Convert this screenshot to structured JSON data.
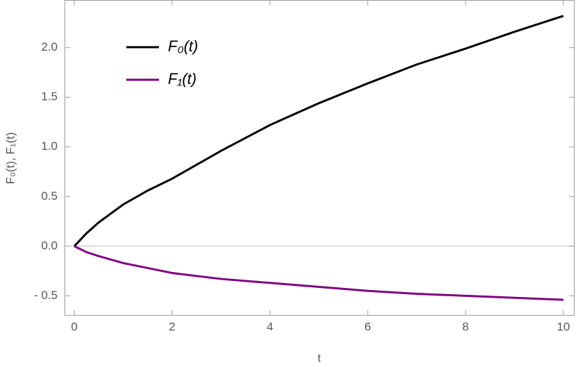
{
  "chart_data": {
    "type": "line",
    "x_label": "t",
    "y_label": "F₀(t), F₁(t)",
    "x": [
      0,
      0.25,
      0.5,
      1,
      1.5,
      2,
      3,
      4,
      5,
      6,
      7,
      8,
      9,
      10
    ],
    "series": [
      {
        "name": "F₀(t)",
        "color": "#000000",
        "values": [
          0,
          0.13,
          0.24,
          0.42,
          0.56,
          0.68,
          0.96,
          1.22,
          1.44,
          1.64,
          1.83,
          1.99,
          2.16,
          2.32
        ]
      },
      {
        "name": "F₁(t)",
        "color": "#800080",
        "values": [
          0,
          -0.06,
          -0.1,
          -0.17,
          -0.22,
          -0.27,
          -0.33,
          -0.37,
          -0.41,
          -0.45,
          -0.48,
          -0.5,
          -0.52,
          -0.54
        ]
      }
    ],
    "xlim": [
      -0.2,
      10.23
    ],
    "ylim": [
      -0.7,
      2.48
    ],
    "xticks": [
      0,
      2,
      4,
      6,
      8,
      10
    ],
    "yticks": [
      {
        "value": -0.5,
        "label": "- 0.5"
      },
      {
        "value": 0,
        "label": "0.0"
      },
      0.5,
      {
        "value": 1,
        "label": "1.0"
      },
      1.5,
      {
        "value": 2,
        "label": "2.0"
      }
    ],
    "legend": "upper left"
  }
}
